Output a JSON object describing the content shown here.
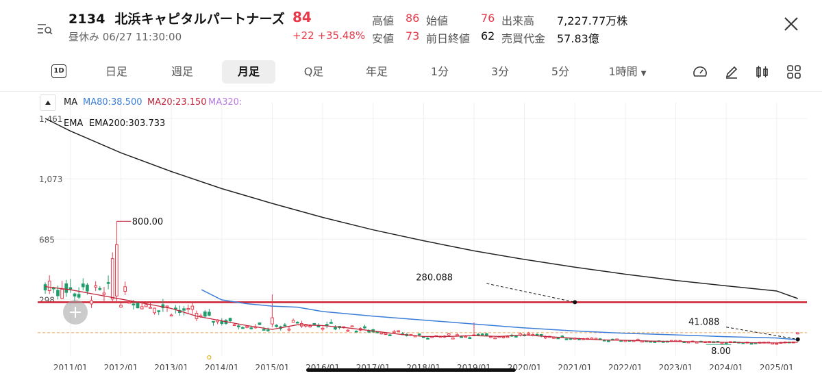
{
  "header": {
    "code": "2134",
    "name": "北浜キャピタルパートナーズ",
    "price": "84",
    "status": "昼休み 06/27 11:30:00",
    "change": "+22 +35.48%",
    "quote": [
      {
        "label": "高値",
        "value": "86",
        "red": true
      },
      {
        "label": "始値",
        "value": "76",
        "red": true
      },
      {
        "label": "出来高",
        "value": "7,227.77万株",
        "red": false
      },
      {
        "label": "安値",
        "value": "73",
        "red": true
      },
      {
        "label": "前日終値",
        "value": "62",
        "red": false
      },
      {
        "label": "売買代金",
        "value": "57.83億",
        "red": false
      }
    ]
  },
  "tabs": [
    {
      "label": "1D"
    },
    {
      "label": "日足"
    },
    {
      "label": "週足"
    },
    {
      "label": "月足",
      "active": true
    },
    {
      "label": "Q足"
    },
    {
      "label": "年足"
    },
    {
      "label": "1分"
    },
    {
      "label": "3分"
    },
    {
      "label": "5分"
    },
    {
      "label": "1時間"
    }
  ],
  "tools": [
    "gauge-icon",
    "pen-icon",
    "candle-icon",
    "grid-icon"
  ],
  "legend": {
    "ma": "MA",
    "ma80": "MA80:38.500",
    "ma20": "MA20:23.150",
    "ma320": "MA320:",
    "ema": "EMA",
    "ema200": "EMA200:303.733"
  },
  "colors": {
    "up": "#e8394a",
    "down": "#1f9d6b",
    "ma80": "#3b7dd8",
    "ma20": "#c0253a",
    "ma320": "#b77be0",
    "ema200": "#222222",
    "hline": "#cc1f30"
  },
  "chart_data": {
    "type": "candlestick",
    "y_ticks": [
      "1,461",
      "1,073",
      "685",
      "298"
    ],
    "x_labels": [
      "2011/01",
      "2012/01",
      "2013/01",
      "2014/01",
      "2015/01",
      "2016/01",
      "2017/01",
      "2018/01",
      "2019/01",
      "2020/01",
      "2021/01",
      "2022/01",
      "2023/01",
      "2024/01",
      "2025/01"
    ],
    "ylim": [
      0,
      1461
    ],
    "horizontal_line": 280,
    "annotations": [
      {
        "text": "800.00",
        "x": "2011/12",
        "y": 800
      },
      {
        "text": "280.088",
        "x": "2021/01",
        "y": 280.088
      },
      {
        "text": "41.088",
        "x": "2025/06",
        "y": 41.088
      },
      {
        "text": "8.00",
        "x": "2024/06",
        "y": 8
      }
    ],
    "ema200": [
      [
        2010.5,
        1461
      ],
      [
        2011,
        1380
      ],
      [
        2012,
        1240
      ],
      [
        2013,
        1120
      ],
      [
        2014,
        1010
      ],
      [
        2015,
        915
      ],
      [
        2016,
        825
      ],
      [
        2017,
        745
      ],
      [
        2018,
        675
      ],
      [
        2019,
        610
      ],
      [
        2020,
        555
      ],
      [
        2021,
        505
      ],
      [
        2022,
        460
      ],
      [
        2023,
        420
      ],
      [
        2024,
        385
      ],
      [
        2025,
        352
      ],
      [
        2025.42,
        303.7
      ]
    ],
    "ma80": [
      [
        2013.6,
        360
      ],
      [
        2014,
        295
      ],
      [
        2014.5,
        270
      ],
      [
        2015,
        255
      ],
      [
        2015.5,
        248
      ],
      [
        2016,
        220
      ],
      [
        2016.5,
        205
      ],
      [
        2017,
        190
      ],
      [
        2018,
        165
      ],
      [
        2019,
        140
      ],
      [
        2020,
        115
      ],
      [
        2021,
        95
      ],
      [
        2022,
        80
      ],
      [
        2023,
        70
      ],
      [
        2024,
        58
      ],
      [
        2025,
        50
      ],
      [
        2025.42,
        38.5
      ]
    ],
    "ma20": [
      [
        2010.5,
        380
      ],
      [
        2011,
        360
      ],
      [
        2011.5,
        330
      ],
      [
        2012,
        300
      ],
      [
        2012.5,
        270
      ],
      [
        2013,
        240
      ],
      [
        2013.5,
        190
      ],
      [
        2014,
        160
      ],
      [
        2014.5,
        130
      ],
      [
        2015,
        105
      ],
      [
        2015.5,
        135
      ],
      [
        2016,
        130
      ],
      [
        2016.5,
        115
      ],
      [
        2017,
        95
      ],
      [
        2017.5,
        75
      ],
      [
        2018,
        60
      ],
      [
        2018.5,
        60
      ],
      [
        2019,
        65
      ],
      [
        2019.5,
        60
      ],
      [
        2020,
        70
      ],
      [
        2020.5,
        58
      ],
      [
        2021,
        48
      ],
      [
        2021.5,
        38
      ],
      [
        2022,
        35
      ],
      [
        2022.5,
        30
      ],
      [
        2023,
        28
      ],
      [
        2023.5,
        25
      ],
      [
        2024,
        22
      ],
      [
        2024.5,
        20
      ],
      [
        2025,
        18
      ],
      [
        2025.42,
        23.15
      ]
    ],
    "candles_sample": [
      {
        "t": "2011/12",
        "o": 320,
        "h": 800,
        "l": 280,
        "c": 650
      },
      {
        "t": "2015/01",
        "o": 140,
        "h": 330,
        "l": 120,
        "c": 180
      },
      {
        "t": "2019/01",
        "o": 90,
        "h": 150,
        "l": 60,
        "c": 70
      },
      {
        "t": "2025/06",
        "o": 76,
        "h": 86,
        "l": 73,
        "c": 84
      }
    ]
  }
}
